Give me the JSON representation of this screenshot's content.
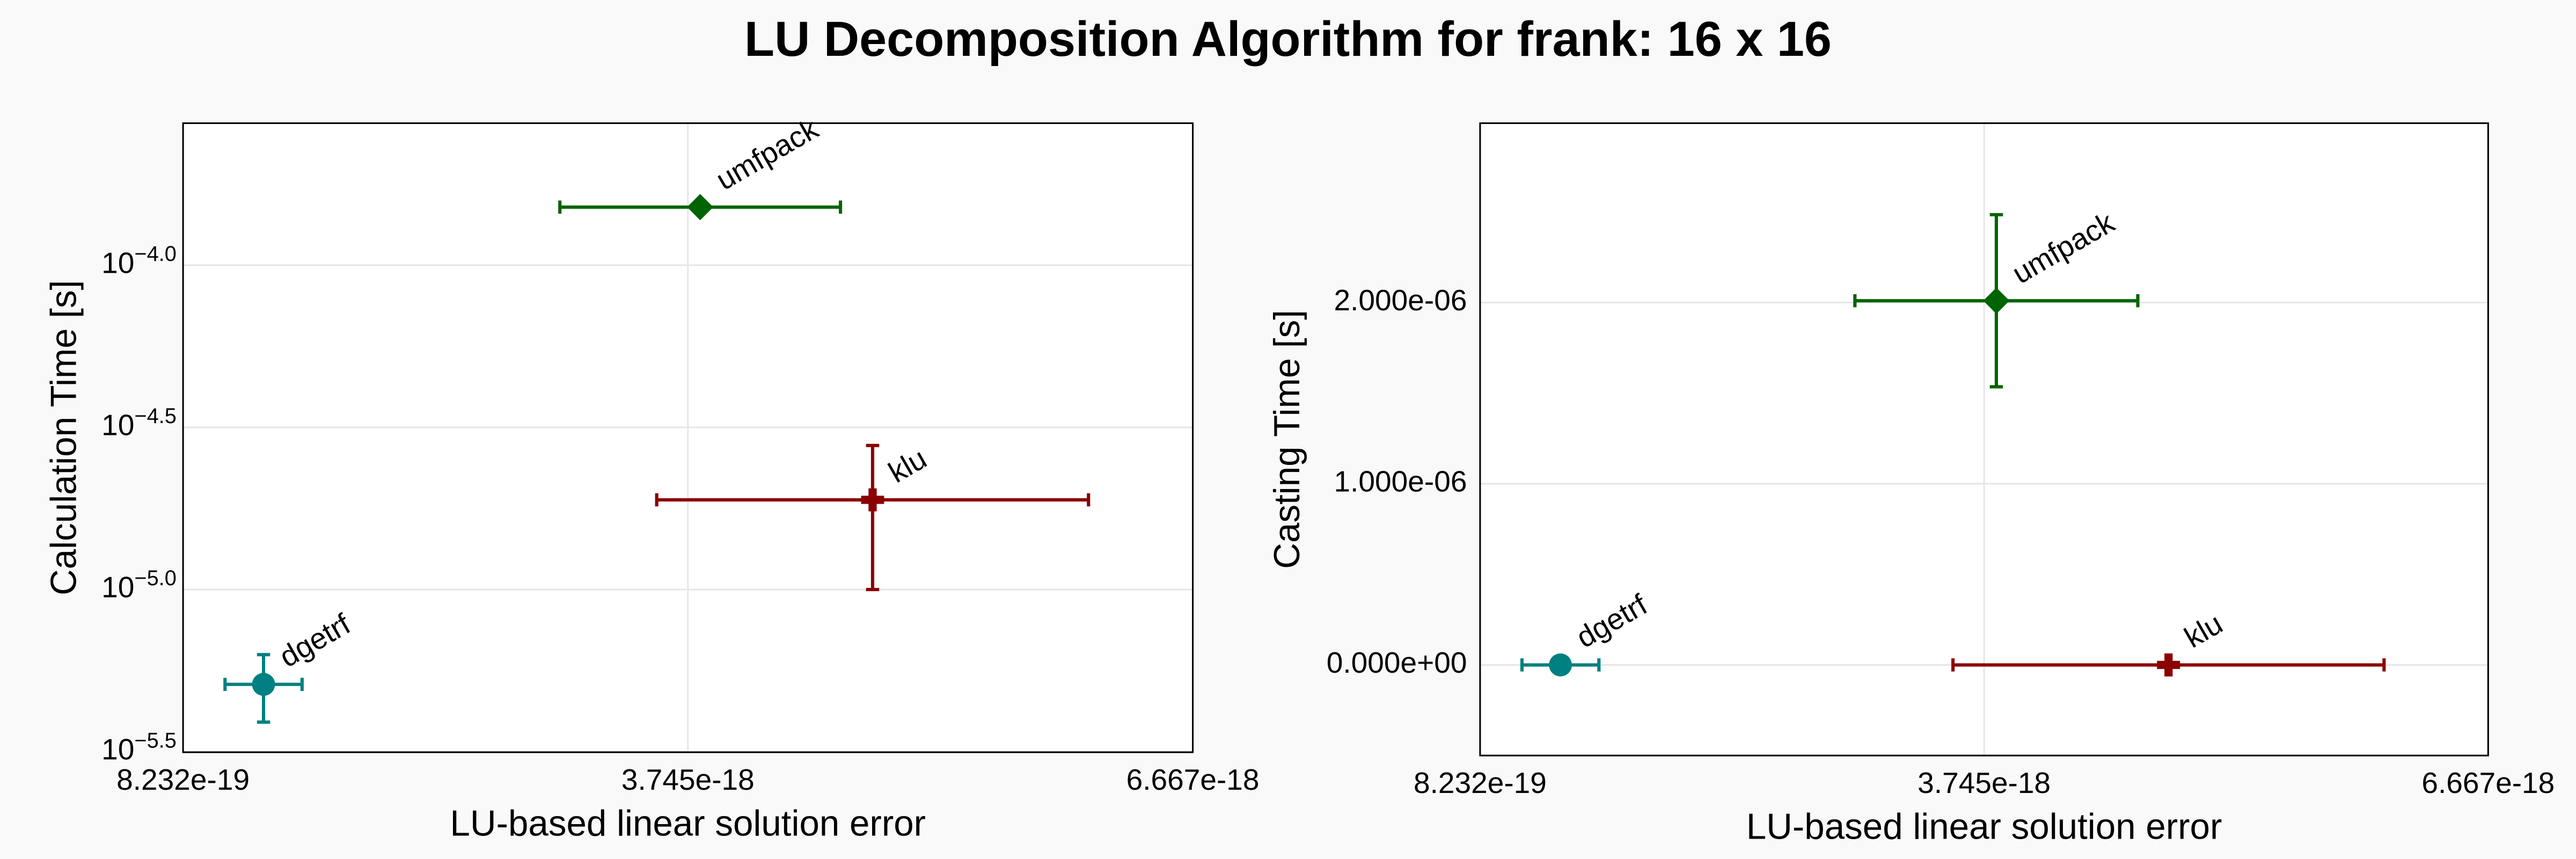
{
  "title": "LU Decomposition Algorithm for frank: 16 x 16",
  "chart_data": [
    {
      "type": "scatter",
      "xlabel": "LU-based linear solution error",
      "ylabel": "Calculation Time [s]",
      "xlim": [
        8.232e-19,
        6.667e-18
      ],
      "xticks": [
        {
          "value": 8.232e-19,
          "label": "8.232e-19"
        },
        {
          "value": 3.745e-18,
          "label": "3.745e-18"
        },
        {
          "value": 6.667e-18,
          "label": "6.667e-18"
        }
      ],
      "ylim": [
        3.15e-06,
        0.000274
      ],
      "yscale": "log",
      "yticks": [
        {
          "value": 0.0001,
          "label": "10",
          "sup": "−4.0"
        },
        {
          "value": 3.1623e-05,
          "label": "10",
          "sup": "−4.5"
        },
        {
          "value": 1e-05,
          "label": "10",
          "sup": "−5.0"
        },
        {
          "value": 3.1623e-06,
          "label": "10",
          "sup": "−5.5"
        }
      ],
      "grid": true,
      "series": [
        {
          "name": "dgetrf",
          "color": "#008080",
          "marker": "circle",
          "x": [
            1.289e-18
          ],
          "values": [
            5.1e-06
          ],
          "xerr": [
            2.23e-19
          ],
          "yerr": [
            1.2e-06
          ]
        },
        {
          "name": "umfpack",
          "color": "#006400",
          "marker": "diamond",
          "x": [
            3.816e-18
          ],
          "values": [
            0.000151
          ],
          "xerr": [
            8.12e-19
          ],
          "yerr": [
            2e-06
          ]
        },
        {
          "name": "klu",
          "color": "#8b0000",
          "marker": "cross",
          "x": [
            4.814e-18
          ],
          "values": [
            1.89e-05
          ],
          "xerr": [
            1.2495e-18
          ],
          "yerr": [
            8.9e-06
          ]
        }
      ]
    },
    {
      "type": "scatter",
      "xlabel": "LU-based linear solution error",
      "ylabel": "Casting Time [s]",
      "xlim": [
        8.232e-19,
        6.667e-18
      ],
      "xticks": [
        {
          "value": 8.232e-19,
          "label": "8.232e-19"
        },
        {
          "value": 3.745e-18,
          "label": "3.745e-18"
        },
        {
          "value": 6.667e-18,
          "label": "6.667e-18"
        }
      ],
      "ylim": [
        -5e-07,
        2.99e-06
      ],
      "yscale": "linear",
      "yticks": [
        {
          "value": 0,
          "label": "0.000e+00"
        },
        {
          "value": 1e-06,
          "label": "1.000e-06"
        },
        {
          "value": 2e-06,
          "label": "2.000e-06"
        }
      ],
      "grid": true,
      "series": [
        {
          "name": "dgetrf",
          "color": "#008080",
          "marker": "circle",
          "x": [
            1.289e-18
          ],
          "values": [
            0
          ],
          "xerr": [
            2.23e-19
          ],
          "yerr": [
            0
          ]
        },
        {
          "name": "umfpack",
          "color": "#006400",
          "marker": "diamond",
          "x": [
            3.816e-18
          ],
          "values": [
            2.01e-06
          ],
          "xerr": [
            8.2e-19
          ],
          "yerr": [
            4.75e-07
          ]
        },
        {
          "name": "klu",
          "color": "#8b0000",
          "marker": "cross",
          "x": [
            4.814e-18
          ],
          "values": [
            0
          ],
          "xerr": [
            1.2495e-18
          ],
          "yerr": [
            0
          ]
        }
      ]
    }
  ]
}
